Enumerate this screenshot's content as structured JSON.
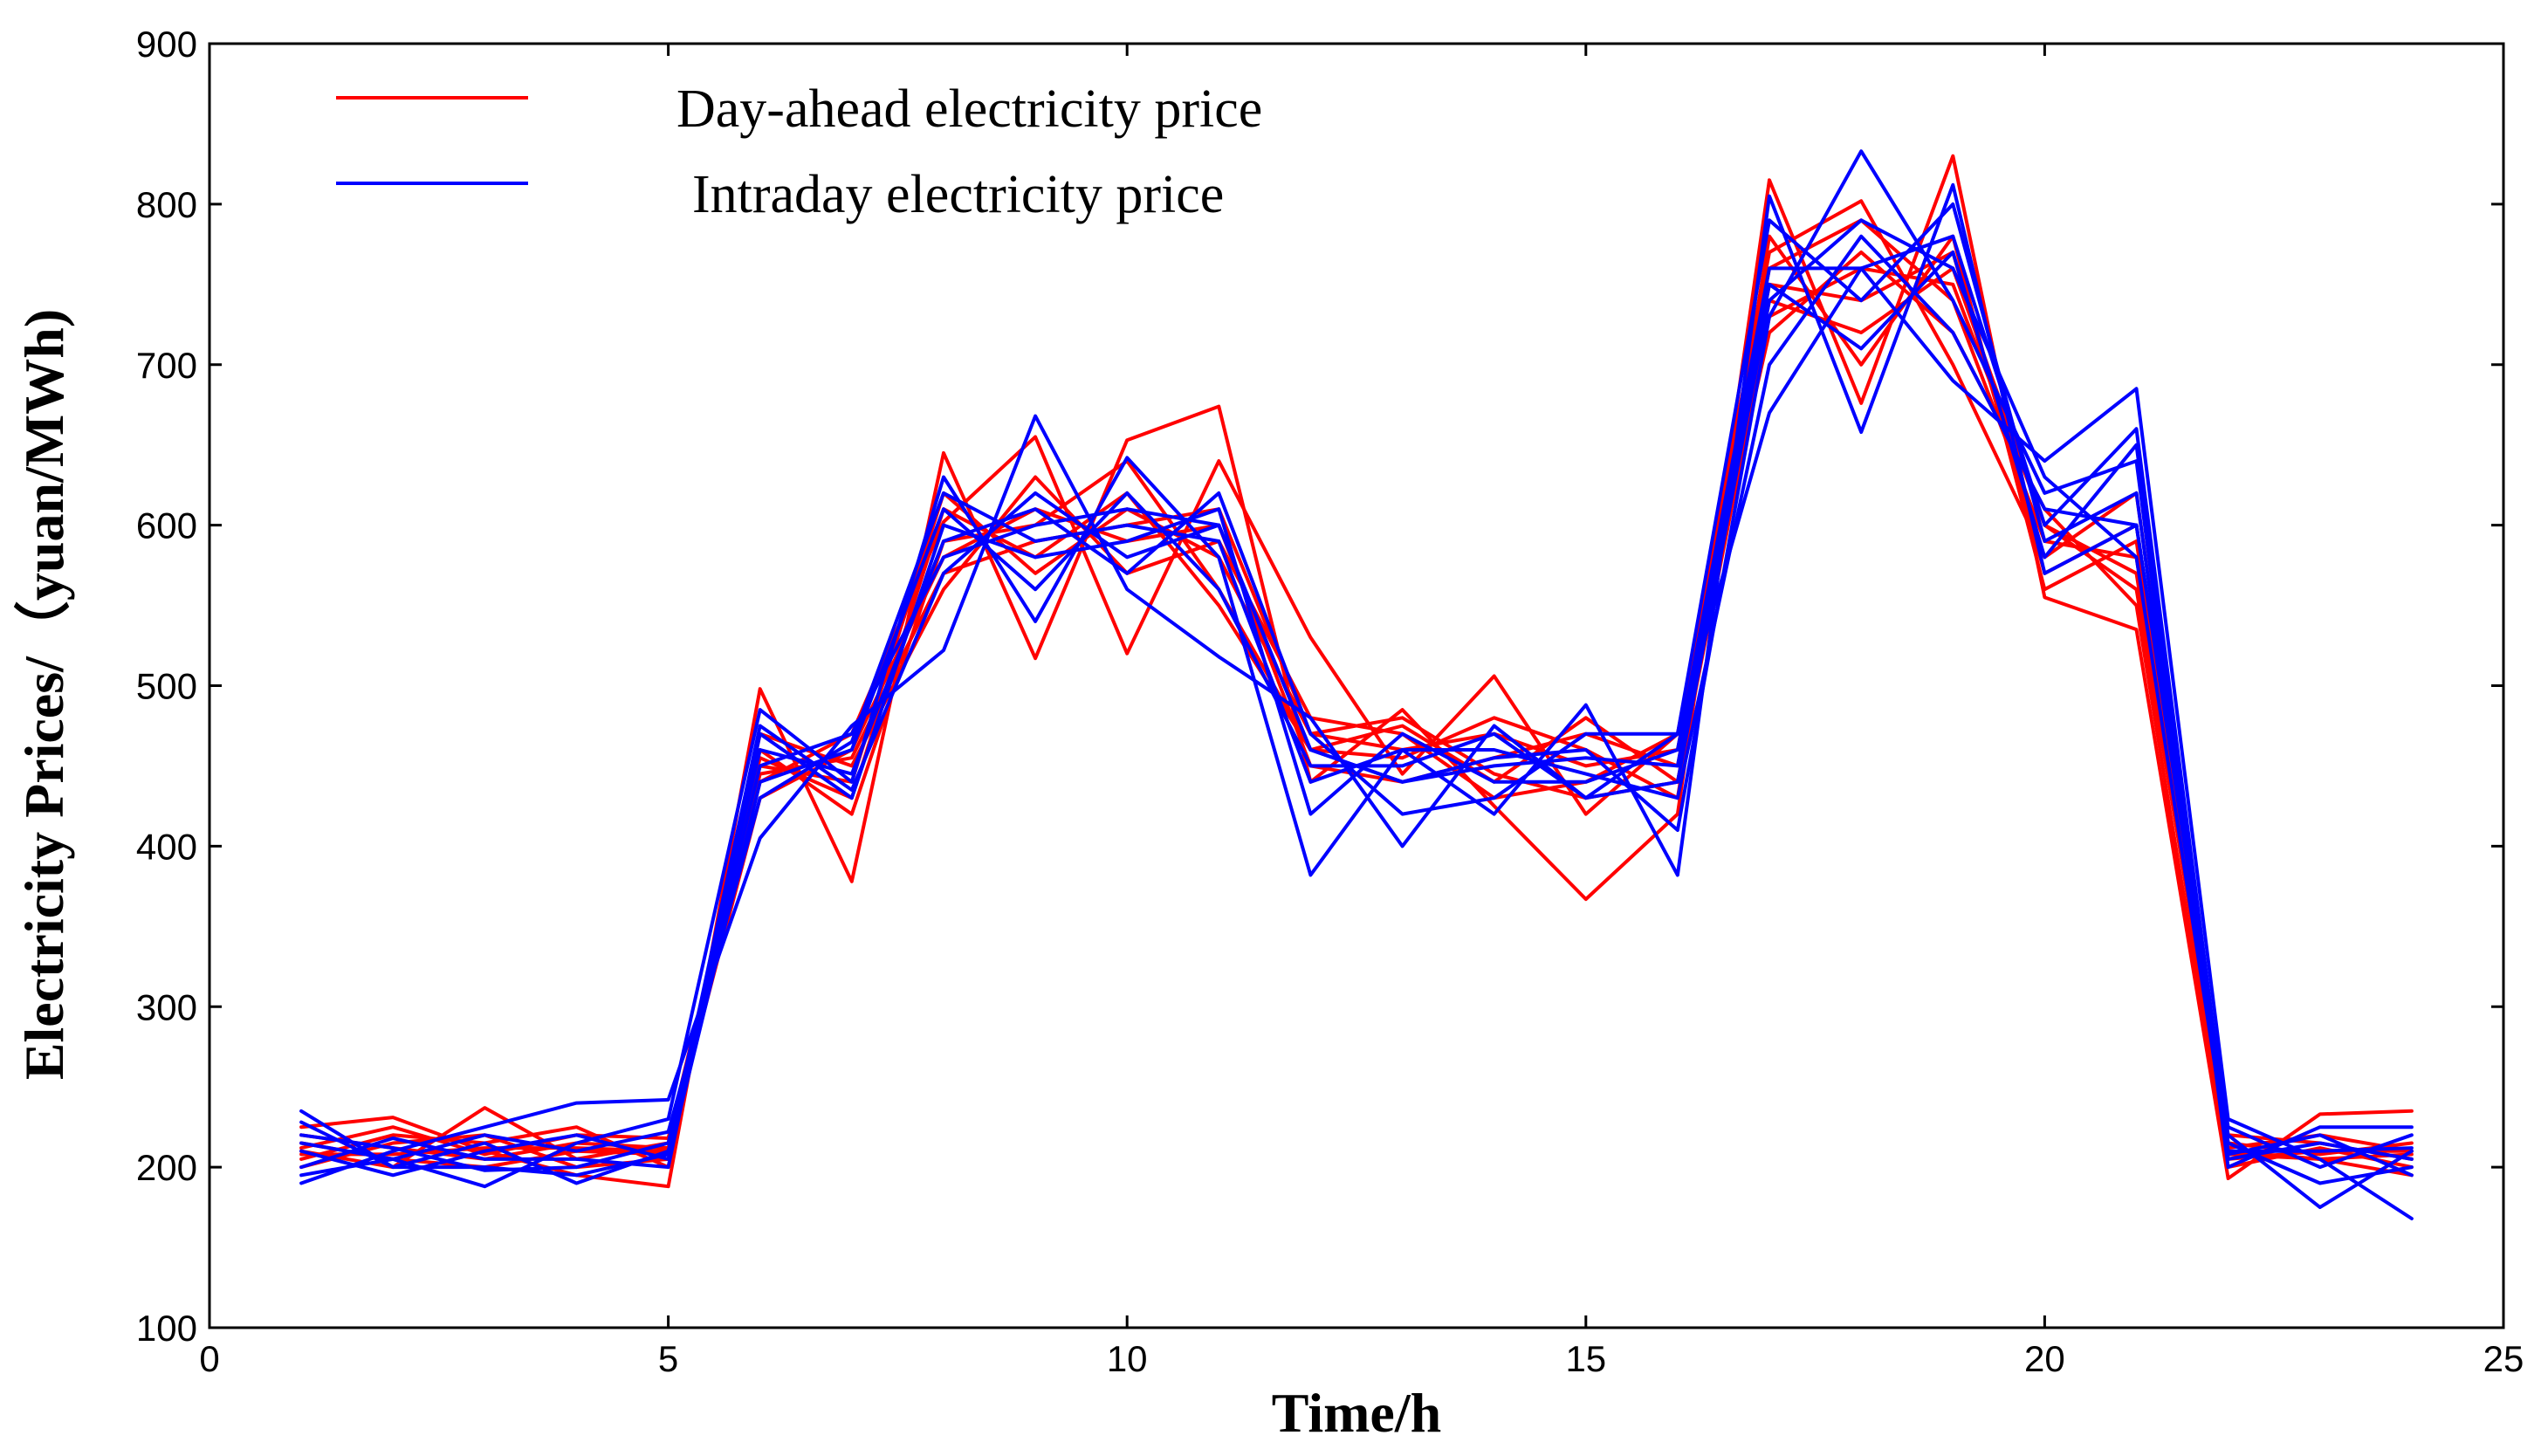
{
  "chart_data": {
    "type": "line",
    "title": "",
    "xlabel": "Time/h",
    "ylabel": "Electricity Prices/（yuan/MWh)",
    "xlim": [
      0,
      25
    ],
    "ylim": [
      100,
      900
    ],
    "xticks": [
      0,
      5,
      10,
      15,
      20,
      25
    ],
    "yticks": [
      100,
      200,
      300,
      400,
      500,
      600,
      700,
      800,
      900
    ],
    "grid": false,
    "legend_position": "top-left",
    "legend": [
      {
        "label": "Day-ahead electricity price",
        "color": "#ff0000"
      },
      {
        "label": "Intraday electricity price",
        "color": "#0000ff"
      }
    ],
    "x": [
      1,
      2,
      3,
      4,
      5,
      6,
      7,
      8,
      9,
      10,
      11,
      12,
      13,
      14,
      15,
      16,
      17,
      18,
      19,
      20,
      21,
      22,
      23,
      24
    ],
    "series": [
      {
        "name": "Day-ahead electricity price",
        "color": "#ff0000",
        "values": [
          225,
          231,
          210,
          195,
          188,
          498,
          378,
          645,
          517,
          653,
          674,
          440,
          485,
          425,
          367,
          420,
          815,
          676,
          830,
          555,
          535,
          193,
          233,
          235
        ]
      },
      {
        "name": "Day-ahead electricity price",
        "color": "#ff0000",
        "values": [
          210,
          200,
          237,
          205,
          215,
          440,
          470,
          602,
          655,
          520,
          640,
          530,
          445,
          506,
          420,
          470,
          770,
          802,
          700,
          580,
          620,
          210,
          205,
          195
        ]
      },
      {
        "name": "Day-ahead electricity price",
        "color": "#ff0000",
        "values": [
          205,
          220,
          215,
          225,
          200,
          460,
          420,
          590,
          600,
          640,
          560,
          460,
          475,
          440,
          480,
          440,
          740,
          720,
          760,
          600,
          560,
          220,
          215,
          205
        ]
      },
      {
        "name": "Day-ahead electricity price",
        "color": "#ff0000",
        "values": [
          215,
          205,
          200,
          210,
          208,
          450,
          440,
          620,
          570,
          610,
          580,
          470,
          460,
          470,
          450,
          460,
          760,
          790,
          740,
          590,
          580,
          205,
          210,
          210
        ]
      },
      {
        "name": "Day-ahead electricity price",
        "color": "#ff0000",
        "values": [
          220,
          212,
          205,
          215,
          212,
          430,
          460,
          580,
          610,
          590,
          600,
          450,
          440,
          455,
          470,
          450,
          750,
          740,
          770,
          570,
          600,
          215,
          208,
          215
        ]
      },
      {
        "name": "Day-ahead electricity price",
        "color": "#ff0000",
        "values": [
          200,
          215,
          220,
          200,
          205,
          470,
          450,
          560,
          630,
          570,
          590,
          480,
          470,
          430,
          440,
          470,
          720,
          770,
          720,
          610,
          550,
          200,
          212,
          200
        ]
      },
      {
        "name": "Day-ahead electricity price",
        "color": "#ff0000",
        "values": [
          212,
          225,
          208,
          220,
          218,
          455,
          430,
          610,
          580,
          620,
          550,
          460,
          455,
          480,
          460,
          430,
          780,
          700,
          780,
          560,
          590,
          212,
          220,
          210
        ]
      },
      {
        "name": "Day-ahead electricity price",
        "color": "#ff0000",
        "values": [
          208,
          208,
          212,
          212,
          210,
          445,
          455,
          570,
          590,
          600,
          610,
          470,
          480,
          445,
          430,
          440,
          730,
          760,
          750,
          600,
          570,
          208,
          205,
          208
        ]
      },
      {
        "name": "Intraday electricity price",
        "color": "#0000ff",
        "values": [
          190,
          210,
          225,
          240,
          242,
          405,
          475,
          522,
          668,
          560,
          518,
          480,
          400,
          475,
          430,
          470,
          670,
          760,
          690,
          640,
          685,
          230,
          205,
          168
        ]
      },
      {
        "name": "Intraday electricity price",
        "color": "#0000ff",
        "values": [
          215,
          205,
          188,
          215,
          230,
          485,
          440,
          630,
          540,
          642,
          580,
          382,
          460,
          420,
          488,
          382,
          805,
          658,
          812,
          570,
          600,
          220,
          175,
          210
        ]
      },
      {
        "name": "Intraday electricity price",
        "color": "#0000ff",
        "values": [
          235,
          200,
          215,
          190,
          210,
          450,
          470,
          580,
          600,
          610,
          600,
          460,
          440,
          455,
          460,
          410,
          730,
          833,
          740,
          620,
          640,
          200,
          225,
          225
        ]
      },
      {
        "name": "Intraday electricity price",
        "color": "#0000ff",
        "values": [
          200,
          218,
          205,
          205,
          200,
          470,
          430,
          600,
          580,
          590,
          610,
          420,
          470,
          440,
          440,
          460,
          760,
          760,
          780,
          600,
          660,
          215,
          190,
          200
        ]
      },
      {
        "name": "Intraday electricity price",
        "color": "#0000ff",
        "values": [
          210,
          195,
          210,
          220,
          205,
          440,
          460,
          610,
          560,
          620,
          560,
          450,
          450,
          470,
          430,
          440,
          740,
          790,
          760,
          630,
          580,
          210,
          210,
          212
        ]
      },
      {
        "name": "Intraday electricity price",
        "color": "#0000ff",
        "values": [
          220,
          212,
          198,
          200,
          215,
          460,
          445,
          590,
          610,
          570,
          620,
          470,
          420,
          430,
          470,
          470,
          790,
          740,
          800,
          590,
          620,
          205,
          215,
          205
        ]
      },
      {
        "name": "Intraday electricity price",
        "color": "#0000ff",
        "values": [
          195,
          205,
          220,
          210,
          222,
          430,
          465,
          620,
          590,
          600,
          590,
          440,
          460,
          460,
          445,
          430,
          700,
          780,
          720,
          610,
          600,
          225,
          200,
          220
        ]
      },
      {
        "name": "Intraday electricity price",
        "color": "#0000ff",
        "values": [
          228,
          200,
          200,
          195,
          208,
          475,
          435,
          570,
          620,
          580,
          600,
          460,
          440,
          450,
          455,
          450,
          750,
          710,
          770,
          580,
          650,
          208,
          220,
          195
        ]
      }
    ]
  }
}
